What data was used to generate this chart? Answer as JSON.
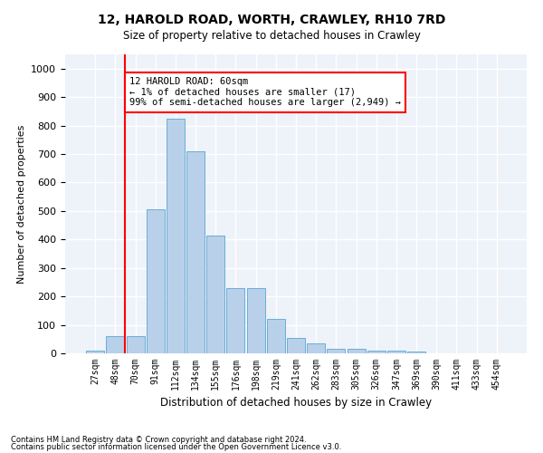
{
  "title": "12, HAROLD ROAD, WORTH, CRAWLEY, RH10 7RD",
  "subtitle": "Size of property relative to detached houses in Crawley",
  "xlabel": "Distribution of detached houses by size in Crawley",
  "ylabel": "Number of detached properties",
  "categories": [
    "27sqm",
    "48sqm",
    "70sqm",
    "91sqm",
    "112sqm",
    "134sqm",
    "155sqm",
    "176sqm",
    "198sqm",
    "219sqm",
    "241sqm",
    "262sqm",
    "283sqm",
    "305sqm",
    "326sqm",
    "347sqm",
    "369sqm",
    "390sqm",
    "411sqm",
    "433sqm",
    "454sqm"
  ],
  "values": [
    8,
    60,
    60,
    505,
    825,
    710,
    415,
    230,
    230,
    120,
    55,
    35,
    15,
    15,
    10,
    10,
    5,
    0,
    0,
    0,
    0
  ],
  "bar_color": "#b8d0ea",
  "bar_edge_color": "#6aaed6",
  "vline_color": "red",
  "annotation_text": "12 HAROLD ROAD: 60sqm\n← 1% of detached houses are smaller (17)\n99% of semi-detached houses are larger (2,949) →",
  "annotation_box_color": "white",
  "annotation_box_edge_color": "red",
  "ylim": [
    0,
    1050
  ],
  "yticks": [
    0,
    100,
    200,
    300,
    400,
    500,
    600,
    700,
    800,
    900,
    1000
  ],
  "background_color": "#eef2f9",
  "footer1": "Contains HM Land Registry data © Crown copyright and database right 2024.",
  "footer2": "Contains public sector information licensed under the Open Government Licence v3.0."
}
